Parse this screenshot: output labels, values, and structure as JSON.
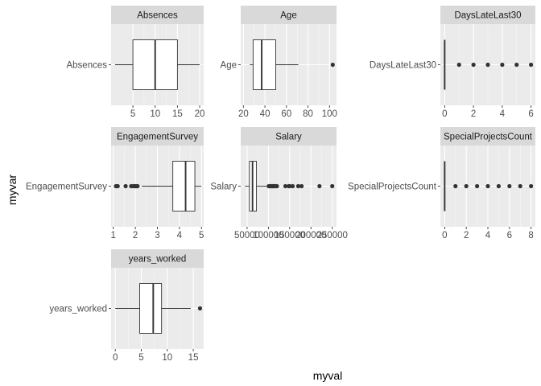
{
  "colors": {
    "panel_bg": "#ebebeb",
    "strip_bg": "#d9d9d9",
    "grid_major": "#ffffff",
    "box_fill": "#ffffff",
    "box_line": "#333333",
    "outlier": "#333333",
    "tick_text": "#4d4d4d"
  },
  "axes": {
    "xlabel": "myval",
    "ylabel": "myvar"
  },
  "chart_data": {
    "type": "boxplot",
    "facet_scales": "free",
    "grid": true,
    "panels": [
      {
        "title": "Absences",
        "category": "Absences",
        "xlim": [
          0.1,
          20.9
        ],
        "ticks": [
          5,
          10,
          15,
          20
        ],
        "tick_labels": [
          "5",
          "10",
          "15",
          "20"
        ],
        "whisker_low": 1,
        "q1": 5,
        "median": 10,
        "q3": 15,
        "whisker_high": 20,
        "outliers": []
      },
      {
        "title": "Age",
        "category": "Age",
        "xlim": [
          17.5,
          106.5
        ],
        "ticks": [
          20,
          40,
          60,
          80,
          100
        ],
        "tick_labels": [
          "20",
          "40",
          "60",
          "80",
          "100"
        ],
        "whisker_low": 26,
        "q1": 29,
        "median": 37,
        "q3": 50,
        "whisker_high": 71,
        "outliers": [
          103
        ]
      },
      {
        "title": "DaysLateLast30",
        "category": "DaysLateLast30",
        "xlim": [
          -0.3,
          6.3
        ],
        "ticks": [
          0,
          2,
          4,
          6
        ],
        "tick_labels": [
          "0",
          "2",
          "4",
          "6"
        ],
        "whisker_low": 0,
        "q1": 0,
        "median": 0,
        "q3": 0,
        "whisker_high": 0,
        "outliers": [
          1,
          2,
          3,
          4,
          5,
          6
        ]
      },
      {
        "title": "EngagementSurvey",
        "category": "EngagementSurvey",
        "xlim": [
          0.9,
          5.1
        ],
        "ticks": [
          1,
          2,
          3,
          4,
          5
        ],
        "tick_labels": [
          "1",
          "2",
          "3",
          "4",
          "5"
        ],
        "whisker_low": 2.3,
        "q1": 3.7,
        "median": 4.28,
        "q3": 4.7,
        "whisker_high": 5.0,
        "outliers": [
          1.12,
          1.2,
          1.56,
          1.81,
          1.9,
          1.96,
          2.0,
          2.05,
          2.1
        ]
      },
      {
        "title": "Salary",
        "category": "Salary",
        "xlim": [
          35000,
          260000
        ],
        "ticks": [
          50000,
          100000,
          150000,
          200000,
          250000
        ],
        "tick_labels": [
          "50000",
          "100000",
          "150000",
          "200000",
          "250000"
        ],
        "whisker_low": 45000,
        "q1": 55500,
        "median": 62800,
        "q3": 72000,
        "whisker_high": 98000,
        "outliers": [
          101000,
          104000,
          106000,
          108000,
          110000,
          112000,
          114000,
          116000,
          120000,
          140000,
          148000,
          150000,
          157000,
          170000,
          178000,
          220000,
          250000
        ]
      },
      {
        "title": "SpecialProjectsCount",
        "category": "SpecialProjectsCount",
        "xlim": [
          -0.4,
          8.4
        ],
        "ticks": [
          0,
          2,
          4,
          6,
          8
        ],
        "tick_labels": [
          "0",
          "2",
          "4",
          "6",
          "8"
        ],
        "whisker_low": 0,
        "q1": 0,
        "median": 0,
        "q3": 0,
        "whisker_high": 0,
        "outliers": [
          1,
          2,
          3,
          4,
          5,
          6,
          7,
          8
        ]
      },
      {
        "title": "years_worked",
        "category": "years_worked",
        "xlim": [
          -0.8,
          17.0
        ],
        "ticks": [
          0,
          5,
          10,
          15
        ],
        "tick_labels": [
          "0",
          "5",
          "10",
          "15"
        ],
        "whisker_low": 0,
        "q1": 4.7,
        "median": 7.3,
        "q3": 8.9,
        "whisker_high": 14.5,
        "outliers": [
          16.3
        ]
      }
    ]
  }
}
